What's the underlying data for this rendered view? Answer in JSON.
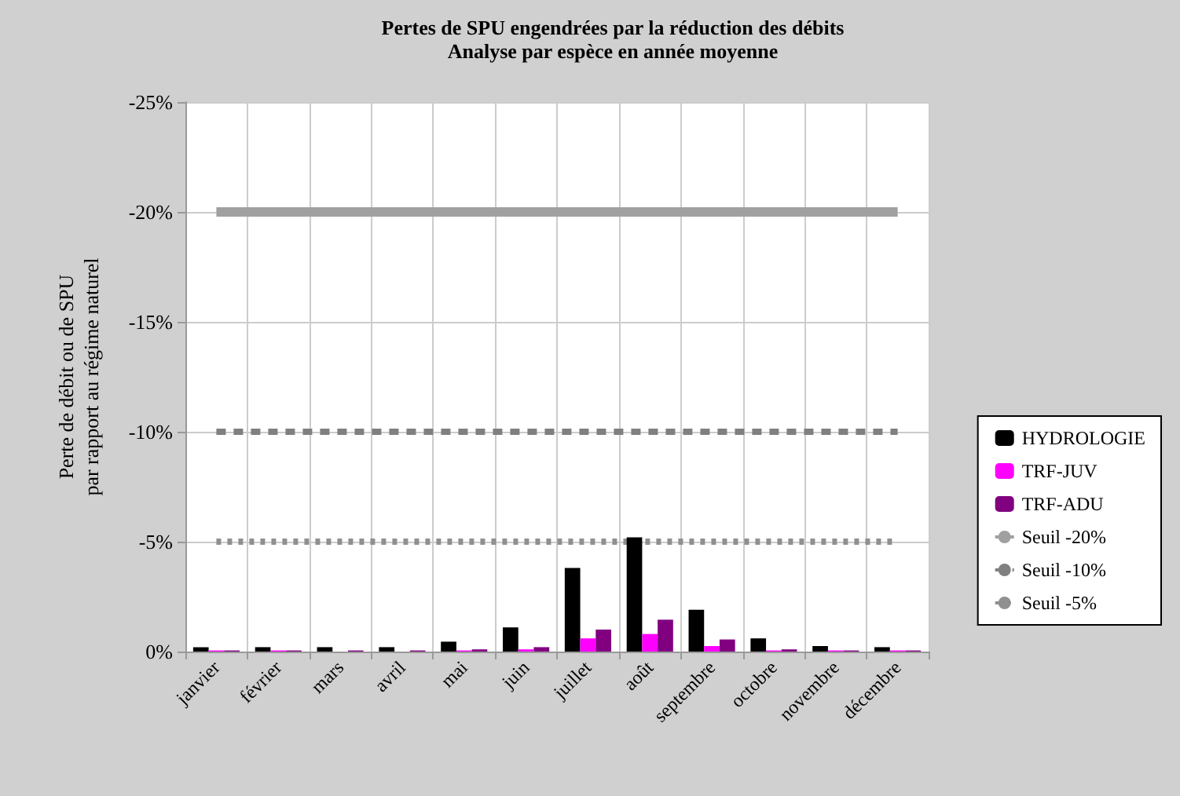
{
  "chart_data": {
    "type": "bar",
    "title": "Pertes de SPU engendrées par la réduction des débits",
    "subtitle": "Analyse par espèce en année moyenne",
    "ylabel": "Perte de débit ou de SPU\npar rapport au régime naturel",
    "categories": [
      "janvier",
      "février",
      "mars",
      "avril",
      "mai",
      "juin",
      "juillet",
      "août",
      "septembre",
      "octobre",
      "novembre",
      "décembre"
    ],
    "series": [
      {
        "name": "HYDROLOGIE",
        "color": "#000000",
        "values": [
          -0.2,
          -0.2,
          -0.2,
          -0.2,
          -0.45,
          -1.1,
          -3.8,
          -5.2,
          -1.9,
          -0.6,
          -0.25,
          -0.2
        ]
      },
      {
        "name": "TRF-JUV",
        "color": "#ff00ff",
        "values": [
          -0.05,
          -0.05,
          0,
          0,
          -0.05,
          -0.1,
          -0.6,
          -0.8,
          -0.25,
          -0.05,
          -0.05,
          -0.05
        ]
      },
      {
        "name": "TRF-ADU",
        "color": "#800080",
        "values": [
          -0.05,
          -0.05,
          -0.05,
          -0.05,
          -0.1,
          -0.2,
          -1.0,
          -1.45,
          -0.55,
          -0.1,
          -0.05,
          -0.05
        ]
      },
      {
        "name": "Seuil -20%",
        "type": "line",
        "color": "#a0a0a0",
        "line_style": "solid",
        "values": [
          -20,
          -20,
          -20,
          -20,
          -20,
          -20,
          -20,
          -20,
          -20,
          -20,
          -20,
          -20
        ]
      },
      {
        "name": "Seuil -10%",
        "type": "line",
        "color": "#808080",
        "line_style": "dashed",
        "values": [
          -10,
          -10,
          -10,
          -10,
          -10,
          -10,
          -10,
          -10,
          -10,
          -10,
          -10,
          -10
        ]
      },
      {
        "name": "Seuil -5%",
        "type": "line",
        "color": "#909090",
        "line_style": "dotted",
        "values": [
          -5,
          -5,
          -5,
          -5,
          -5,
          -5,
          -5,
          -5,
          -5,
          -5,
          -5,
          -5
        ]
      }
    ],
    "ylim": [
      0,
      -25
    ],
    "yticks": [
      {
        "value": 0,
        "label": "0%"
      },
      {
        "value": -5,
        "label": "-5%"
      },
      {
        "value": -10,
        "label": "-10%"
      },
      {
        "value": -15,
        "label": "-15%"
      },
      {
        "value": -20,
        "label": "-20%"
      },
      {
        "value": -25,
        "label": "-25%"
      }
    ],
    "grid": true,
    "legend": "right",
    "marker": "none"
  }
}
